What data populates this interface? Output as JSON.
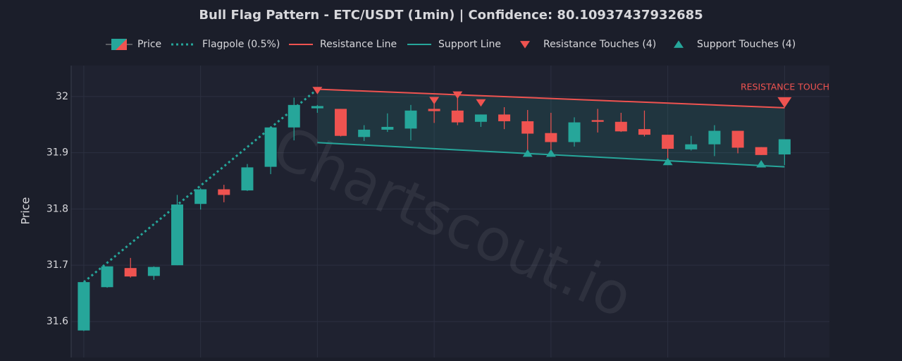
{
  "chart_data": {
    "type": "candlestick",
    "title": "Bull Flag Pattern - ETC/USDT (1min) | Confidence: 80.10937437932685",
    "y_label": "Price",
    "watermark": "Chartscout.io",
    "xlim": [
      -0.54,
      31.92
    ],
    "xticks": [
      0,
      5,
      10,
      15,
      20,
      25,
      30
    ],
    "ylim": [
      31.536,
      32.055
    ],
    "yticks": [
      31.6,
      31.7,
      31.8,
      31.9,
      32
    ],
    "grid": true,
    "up_color": "#26a69a",
    "down_color": "#ef5350",
    "x": [
      0,
      1,
      2,
      3,
      4,
      5,
      6,
      7,
      8,
      9,
      10,
      11,
      12,
      13,
      14,
      15,
      16,
      17,
      18,
      19,
      20,
      21,
      22,
      23,
      24,
      25,
      26,
      27,
      28,
      29,
      30
    ],
    "series": [
      {
        "name": "Price",
        "kind": "candle",
        "open": [
          31.584,
          31.661,
          31.695,
          31.681,
          31.7,
          31.809,
          31.835,
          31.833,
          31.875,
          31.945,
          31.979,
          31.978,
          31.928,
          31.941,
          31.943,
          31.978,
          31.975,
          31.955,
          31.968,
          31.956,
          31.935,
          31.919,
          31.958,
          31.955,
          31.942,
          31.932,
          31.906,
          31.915,
          31.939,
          31.91,
          31.897
        ],
        "high": [
          31.67,
          31.698,
          31.713,
          31.698,
          31.825,
          31.837,
          31.843,
          31.88,
          31.947,
          31.998,
          31.985,
          31.978,
          31.949,
          31.97,
          31.985,
          31.994,
          32.008,
          31.968,
          31.981,
          31.976,
          31.971,
          31.963,
          31.978,
          31.971,
          31.975,
          31.932,
          31.93,
          31.949,
          31.939,
          31.91,
          31.924
        ],
        "low": [
          31.583,
          31.66,
          31.678,
          31.674,
          31.7,
          31.799,
          31.812,
          31.832,
          31.862,
          31.922,
          31.971,
          31.929,
          31.921,
          31.937,
          31.922,
          31.953,
          31.949,
          31.946,
          31.942,
          31.902,
          31.899,
          31.911,
          31.936,
          31.937,
          31.929,
          31.889,
          31.904,
          31.894,
          31.899,
          31.896,
          31.878
        ],
        "close": [
          31.67,
          31.698,
          31.68,
          31.697,
          31.808,
          31.835,
          31.825,
          31.874,
          31.945,
          31.985,
          31.983,
          31.93,
          31.941,
          31.946,
          31.975,
          31.974,
          31.954,
          31.968,
          31.956,
          31.934,
          31.919,
          31.954,
          31.955,
          31.938,
          31.932,
          31.907,
          31.915,
          31.939,
          31.909,
          31.896,
          31.924
        ]
      },
      {
        "name": "Flagpole (0.5%)",
        "kind": "line",
        "dash": "dotted",
        "color": "#26a69a",
        "x": [
          0,
          10
        ],
        "values": [
          31.67,
          32.013
        ]
      },
      {
        "name": "Resistance Line",
        "kind": "line",
        "color": "#ef5350",
        "x": [
          10,
          30
        ],
        "values": [
          32.013,
          31.98
        ]
      },
      {
        "name": "Support Line",
        "kind": "line",
        "color": "#26a69a",
        "x": [
          10,
          30
        ],
        "values": [
          31.918,
          31.875
        ]
      },
      {
        "name": "Resistance Touches (4)",
        "kind": "marker",
        "marker": "down",
        "color": "#ef5350",
        "x": [
          10,
          15,
          16,
          17
        ],
        "values": [
          32.011,
          31.993,
          32.003,
          31.989
        ]
      },
      {
        "name": "Support Touches (4)",
        "kind": "marker",
        "marker": "up",
        "color": "#26a69a",
        "x": [
          19,
          20,
          25,
          29
        ],
        "values": [
          31.899,
          31.899,
          31.884,
          31.88
        ]
      }
    ],
    "channel_fill": "#26a69a",
    "annotation": {
      "text": "RESISTANCE TOUCH",
      "x": 30,
      "value": 31.99,
      "color": "#ef5350"
    }
  }
}
